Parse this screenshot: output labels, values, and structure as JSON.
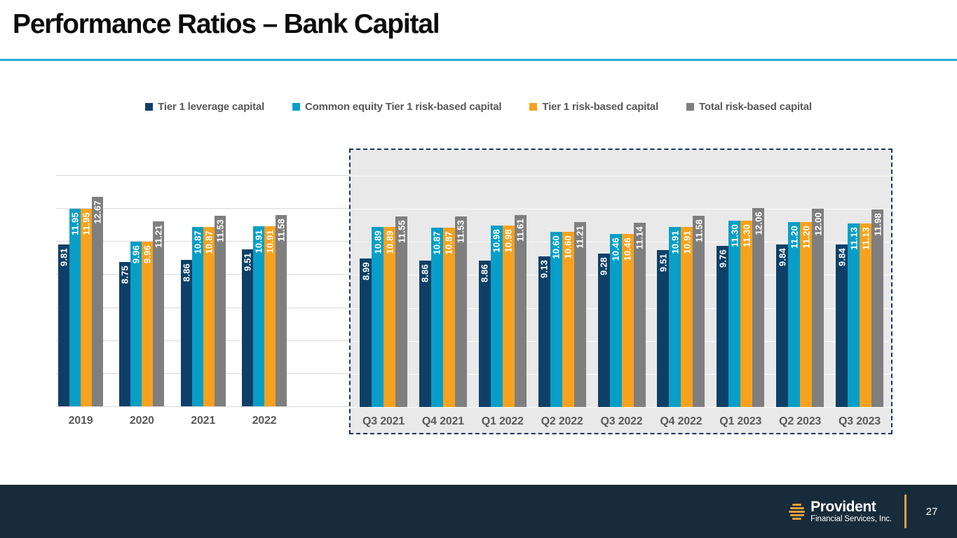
{
  "slide": {
    "title": "Performance Ratios – Bank Capital"
  },
  "legend": [
    {
      "label": "Tier 1 leverage capital",
      "color": "#0E4067"
    },
    {
      "label": "Common equity Tier 1 risk-based capital",
      "color": "#089EC7"
    },
    {
      "label": "Tier 1 risk-based capital",
      "color": "#F6A21E"
    },
    {
      "label": "Total risk-based capital",
      "color": "#7F7F7F"
    }
  ],
  "chart_data": {
    "type": "bar",
    "title": "",
    "ylabel": "",
    "ylim": [
      0,
      14
    ],
    "gridline_step": 2,
    "grid": true,
    "legend_position": "top",
    "value_labels": "rotated-90-inside-bar-top, 2 decimal places",
    "series_names": [
      "Tier 1 leverage capital",
      "Common equity Tier 1 risk-based capital",
      "Tier 1 risk-based capital",
      "Total risk-based capital"
    ],
    "series_colors": [
      "#0E4067",
      "#089EC7",
      "#F6A21E",
      "#7F7F7F"
    ],
    "panels": [
      {
        "name": "annual",
        "highlighted": false,
        "categories": [
          "2019",
          "2020",
          "2021",
          "2022"
        ],
        "series": [
          {
            "name": "Tier 1 leverage capital",
            "values": [
              9.81,
              8.75,
              8.86,
              9.51
            ]
          },
          {
            "name": "Common equity Tier 1 risk-based capital",
            "values": [
              11.95,
              9.96,
              10.87,
              10.91
            ]
          },
          {
            "name": "Tier 1 risk-based capital",
            "values": [
              11.95,
              9.96,
              10.87,
              10.91
            ]
          },
          {
            "name": "Total risk-based capital",
            "values": [
              12.67,
              11.21,
              11.53,
              11.58
            ]
          }
        ]
      },
      {
        "name": "quarterly",
        "highlighted": true,
        "categories": [
          "Q3 2021",
          "Q4 2021",
          "Q1 2022",
          "Q2 2022",
          "Q3 2022",
          "Q4 2022",
          "Q1 2023",
          "Q2 2023",
          "Q3 2023"
        ],
        "series": [
          {
            "name": "Tier 1 leverage capital",
            "values": [
              8.99,
              8.86,
              8.86,
              9.13,
              9.28,
              9.51,
              9.76,
              9.84,
              9.84
            ]
          },
          {
            "name": "Common equity Tier 1 risk-based capital",
            "values": [
              10.89,
              10.87,
              10.98,
              10.6,
              10.46,
              10.91,
              11.3,
              11.2,
              11.13
            ]
          },
          {
            "name": "Tier 1 risk-based capital",
            "values": [
              10.89,
              10.87,
              10.98,
              10.6,
              10.46,
              10.91,
              11.3,
              11.2,
              11.13
            ]
          },
          {
            "name": "Total risk-based capital",
            "values": [
              11.55,
              11.53,
              11.61,
              11.21,
              11.14,
              11.58,
              12.06,
              12.0,
              11.98
            ]
          }
        ]
      }
    ]
  },
  "footer": {
    "brand_name": "Provident",
    "brand_subtitle": "Financial Services, Inc.",
    "page_number": "27"
  },
  "colors": {
    "accent_rule": "#2AA9DB",
    "grid_line": "#D9D9D9",
    "box_grid_line": "rgba(255,255,255,0.8)",
    "box_background": "#E9E9E9",
    "box_border": "#17375E",
    "axis_label": "#595959",
    "footer_background": "#182B3A",
    "footer_accent": "#EDA03C"
  }
}
